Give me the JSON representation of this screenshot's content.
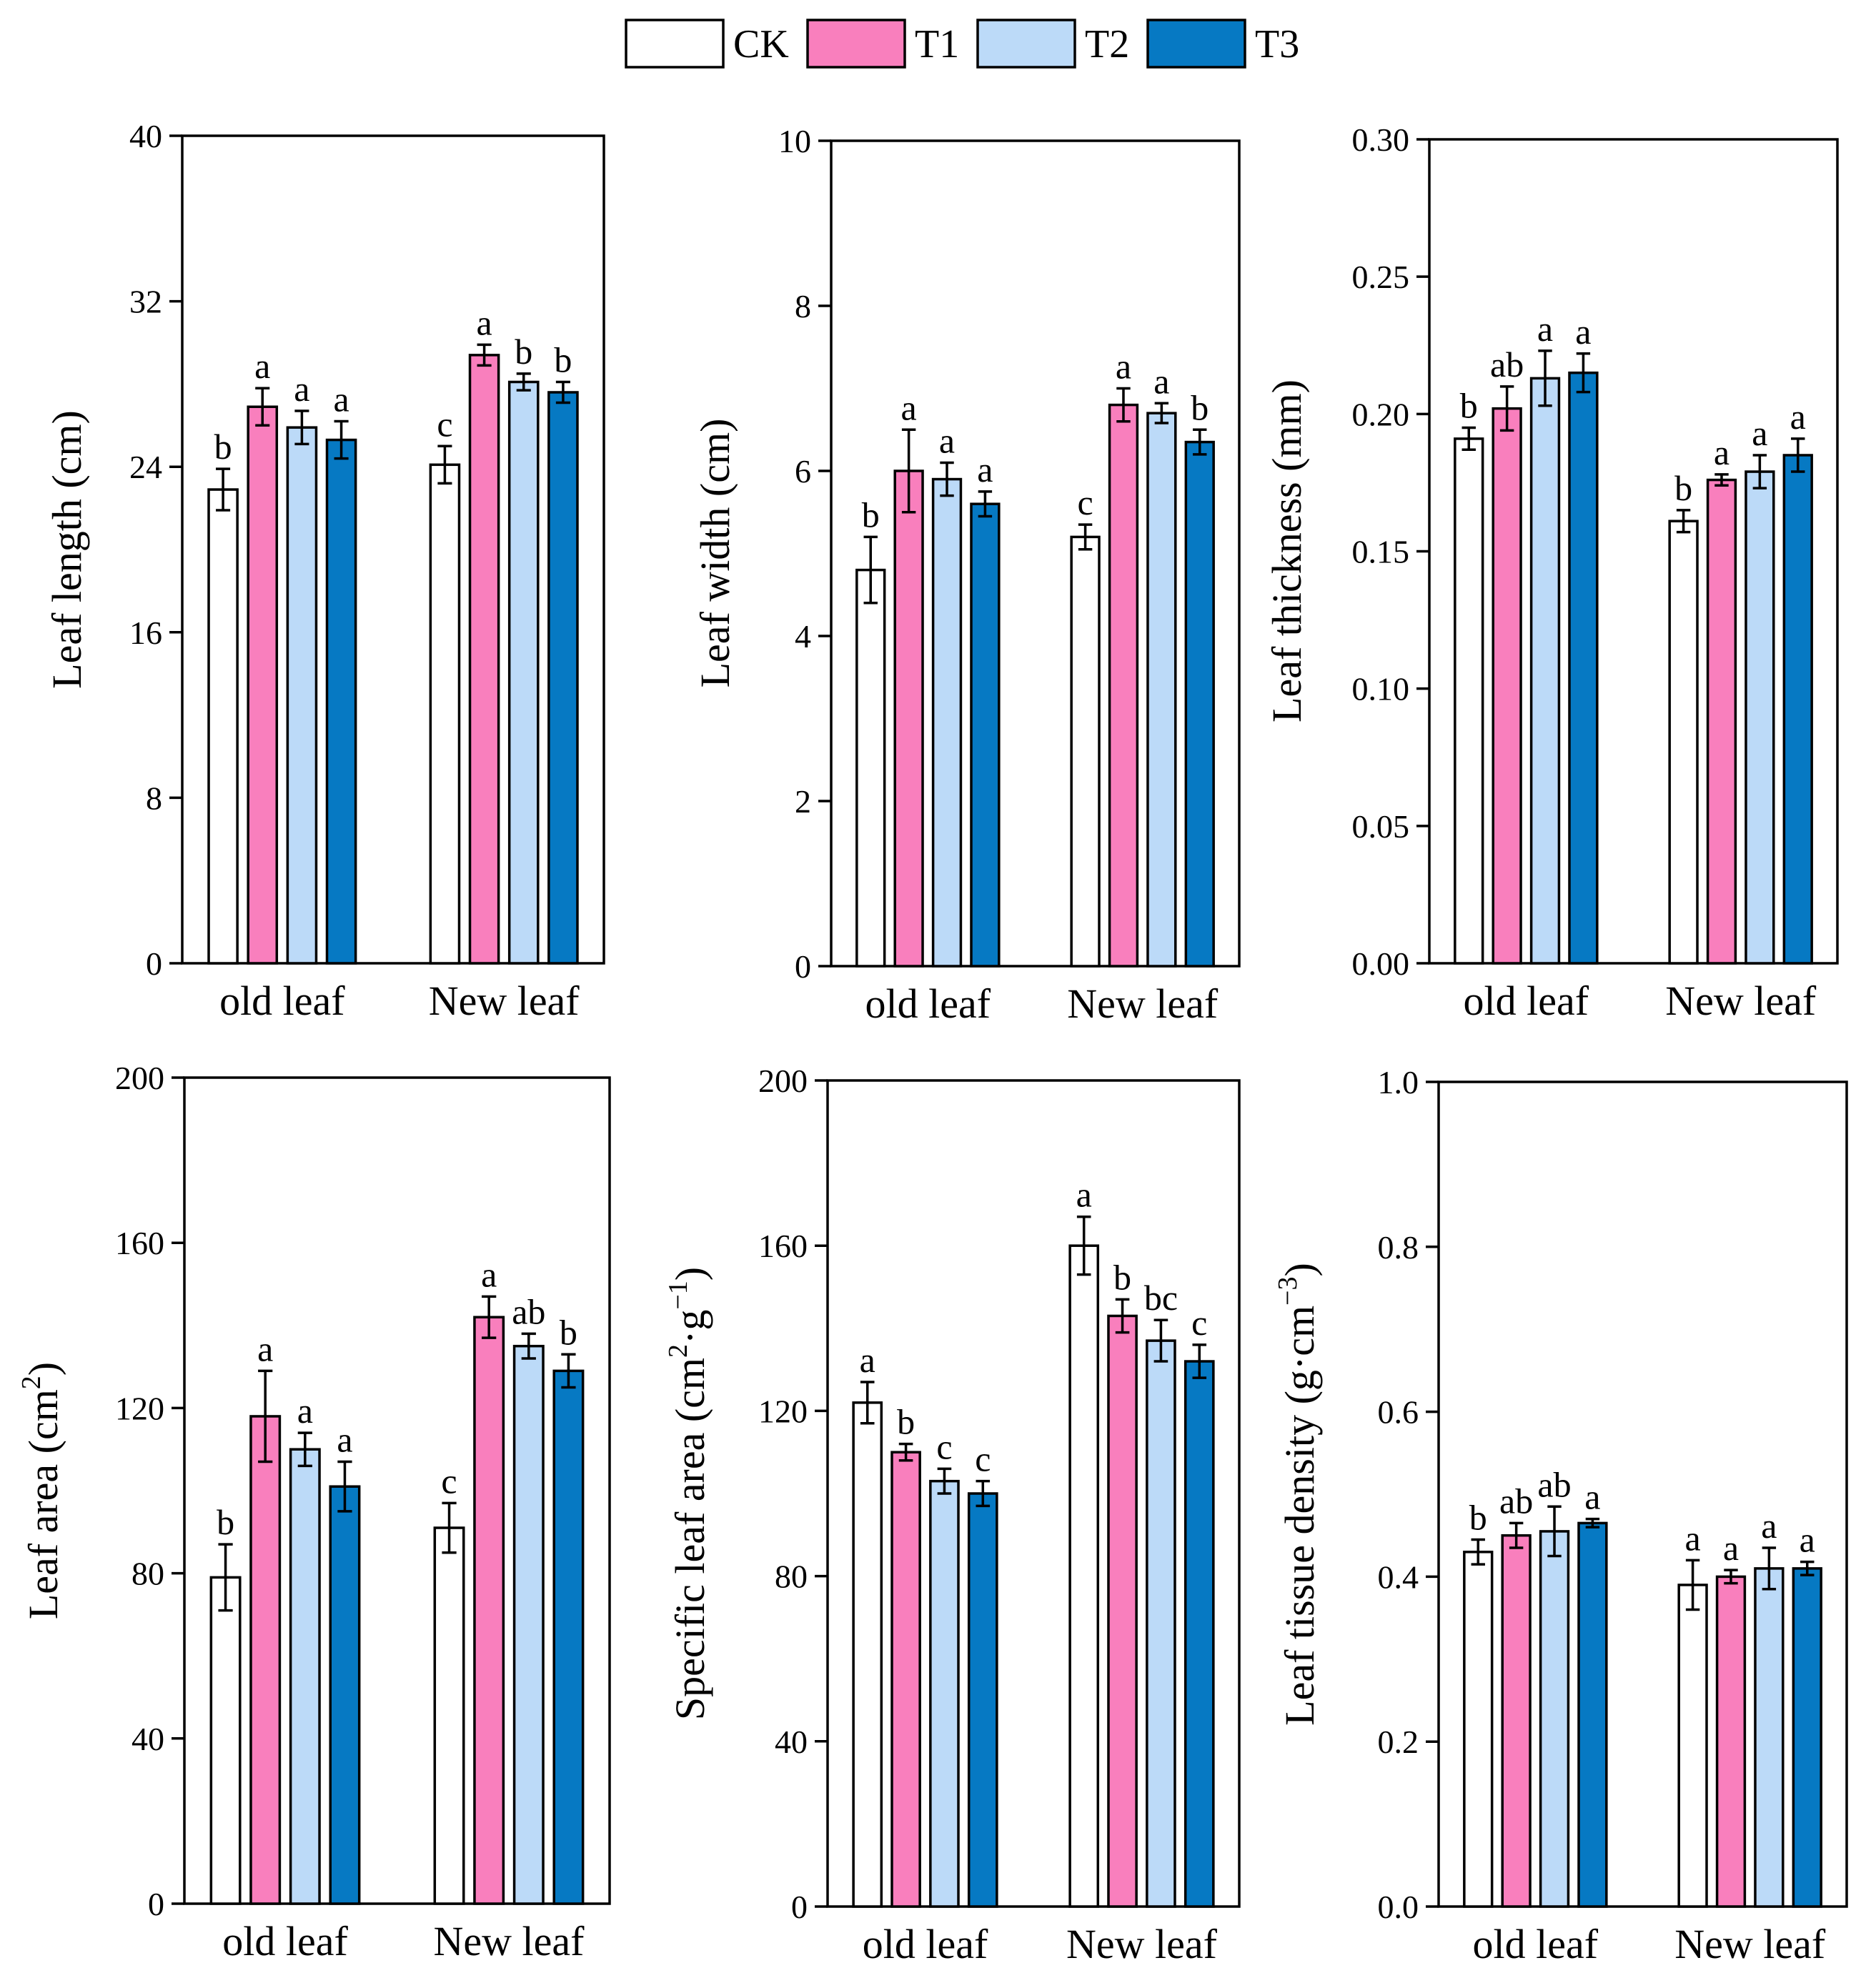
{
  "legend": [
    {
      "name": "CK",
      "color": "#ffffff"
    },
    {
      "name": "T1",
      "color": "#f97fbd"
    },
    {
      "name": "T2",
      "color": "#bcdaf8"
    },
    {
      "name": "T3",
      "color": "#0679c3"
    }
  ],
  "chart_data": [
    {
      "type": "bar",
      "title": "",
      "xlabel": "",
      "ylabel": "Leaf length (cm)",
      "ylim": [
        0,
        40
      ],
      "yticks": [
        "0",
        "8",
        "16",
        "24",
        "32",
        "40"
      ],
      "categories": [
        "old leaf",
        "New leaf"
      ],
      "series": [
        {
          "name": "CK",
          "values": [
            22.9,
            24.1
          ],
          "errors": [
            1.0,
            0.9
          ],
          "letters": [
            "b",
            "c"
          ]
        },
        {
          "name": "T1",
          "values": [
            26.9,
            29.4
          ],
          "errors": [
            0.9,
            0.5
          ],
          "letters": [
            "a",
            "a"
          ]
        },
        {
          "name": "T2",
          "values": [
            25.9,
            28.1
          ],
          "errors": [
            0.8,
            0.4
          ],
          "letters": [
            "a",
            "b"
          ]
        },
        {
          "name": "T3",
          "values": [
            25.3,
            27.6
          ],
          "errors": [
            0.9,
            0.5
          ],
          "letters": [
            "a",
            "b"
          ]
        }
      ]
    },
    {
      "type": "bar",
      "title": "",
      "xlabel": "",
      "ylabel": "Leaf width (cm)",
      "ylim": [
        0,
        10
      ],
      "yticks": [
        "0",
        "2",
        "4",
        "6",
        "8",
        "10"
      ],
      "categories": [
        "old leaf",
        "New leaf"
      ],
      "series": [
        {
          "name": "CK",
          "values": [
            4.8,
            5.2
          ],
          "errors": [
            0.4,
            0.15
          ],
          "letters": [
            "b",
            "c"
          ]
        },
        {
          "name": "T1",
          "values": [
            6.0,
            6.8
          ],
          "errors": [
            0.5,
            0.2
          ],
          "letters": [
            "a",
            "a"
          ]
        },
        {
          "name": "T2",
          "values": [
            5.9,
            6.7
          ],
          "errors": [
            0.2,
            0.12
          ],
          "letters": [
            "a",
            "a"
          ]
        },
        {
          "name": "T3",
          "values": [
            5.6,
            6.35
          ],
          "errors": [
            0.15,
            0.15
          ],
          "letters": [
            "a",
            "b"
          ]
        }
      ]
    },
    {
      "type": "bar",
      "title": "",
      "xlabel": "",
      "ylabel": "Leaf thickness (mm)",
      "ylim": [
        0,
        0.3
      ],
      "yticks": [
        "0.00",
        "0.05",
        "0.10",
        "0.15",
        "0.20",
        "0.25",
        "0.30"
      ],
      "categories": [
        "old leaf",
        "New leaf"
      ],
      "series": [
        {
          "name": "CK",
          "values": [
            0.191,
            0.161
          ],
          "errors": [
            0.004,
            0.004
          ],
          "letters": [
            "b",
            "b"
          ]
        },
        {
          "name": "T1",
          "values": [
            0.202,
            0.176
          ],
          "errors": [
            0.008,
            0.002
          ],
          "letters": [
            "ab",
            "a"
          ]
        },
        {
          "name": "T2",
          "values": [
            0.213,
            0.179
          ],
          "errors": [
            0.01,
            0.006
          ],
          "letters": [
            "a",
            "a"
          ]
        },
        {
          "name": "T3",
          "values": [
            0.215,
            0.185
          ],
          "errors": [
            0.007,
            0.006
          ],
          "letters": [
            "a",
            "a"
          ]
        }
      ]
    },
    {
      "type": "bar",
      "title": "",
      "xlabel": "",
      "ylabel": "Leaf area (cm",
      "ylabel_sup": "2",
      "ylabel_end": ")",
      "ylim": [
        0,
        200
      ],
      "yticks": [
        "0",
        "40",
        "80",
        "120",
        "160",
        "200"
      ],
      "categories": [
        "old leaf",
        "New leaf"
      ],
      "series": [
        {
          "name": "CK",
          "values": [
            79,
            91
          ],
          "errors": [
            8,
            6
          ],
          "letters": [
            "b",
            "c"
          ]
        },
        {
          "name": "T1",
          "values": [
            118,
            142
          ],
          "errors": [
            11,
            5
          ],
          "letters": [
            "a",
            "a"
          ]
        },
        {
          "name": "T2",
          "values": [
            110,
            135
          ],
          "errors": [
            4,
            3
          ],
          "letters": [
            "a",
            "ab"
          ]
        },
        {
          "name": "T3",
          "values": [
            101,
            129
          ],
          "errors": [
            6,
            4
          ],
          "letters": [
            "a",
            "b"
          ]
        }
      ]
    },
    {
      "type": "bar",
      "title": "",
      "xlabel": "",
      "ylabel": "Specific leaf area (cm",
      "ylabel_sup": "2",
      "ylabel_mid": "·g",
      "ylabel_sup2": "−1",
      "ylabel_end": ")",
      "ylim": [
        0,
        200
      ],
      "yticks": [
        "0",
        "40",
        "80",
        "120",
        "160",
        "200"
      ],
      "categories": [
        "old leaf",
        "New leaf"
      ],
      "series": [
        {
          "name": "CK",
          "values": [
            122,
            160
          ],
          "errors": [
            5,
            7
          ],
          "letters": [
            "a",
            "a"
          ]
        },
        {
          "name": "T1",
          "values": [
            110,
            143
          ],
          "errors": [
            2,
            4
          ],
          "letters": [
            "b",
            "b"
          ]
        },
        {
          "name": "T2",
          "values": [
            103,
            137
          ],
          "errors": [
            3,
            5
          ],
          "letters": [
            "c",
            "bc"
          ]
        },
        {
          "name": "T3",
          "values": [
            100,
            132
          ],
          "errors": [
            3,
            4
          ],
          "letters": [
            "c",
            "c"
          ]
        }
      ]
    },
    {
      "type": "bar",
      "title": "",
      "xlabel": "",
      "ylabel": "Leaf tissue density (g·cm",
      "ylabel_sup": "−3",
      "ylabel_end": ")",
      "ylim": [
        0,
        1.0
      ],
      "yticks": [
        "0.0",
        "0.2",
        "0.4",
        "0.6",
        "0.8",
        "1.0"
      ],
      "categories": [
        "old leaf",
        "New leaf"
      ],
      "series": [
        {
          "name": "CK",
          "values": [
            0.43,
            0.39
          ],
          "errors": [
            0.015,
            0.03
          ],
          "letters": [
            "b",
            "a"
          ]
        },
        {
          "name": "T1",
          "values": [
            0.45,
            0.4
          ],
          "errors": [
            0.015,
            0.008
          ],
          "letters": [
            "ab",
            "a"
          ]
        },
        {
          "name": "T2",
          "values": [
            0.455,
            0.41
          ],
          "errors": [
            0.03,
            0.025
          ],
          "letters": [
            "ab",
            "a"
          ]
        },
        {
          "name": "T3",
          "values": [
            0.465,
            0.41
          ],
          "errors": [
            0.005,
            0.008
          ],
          "letters": [
            "a",
            "a"
          ]
        }
      ]
    }
  ]
}
